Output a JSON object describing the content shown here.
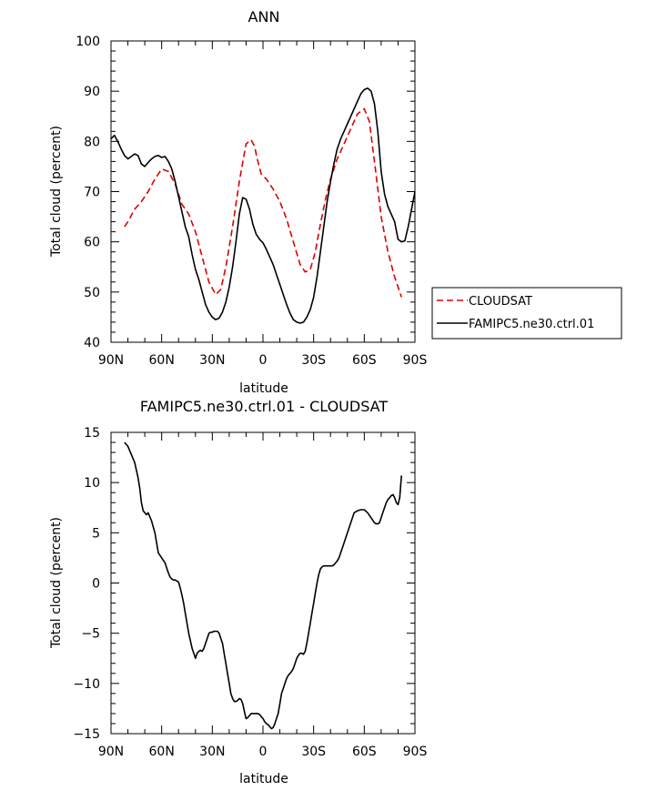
{
  "chart_data": [
    {
      "type": "line",
      "title": "ANN",
      "xlabel": "latitude",
      "ylabel": "Total cloud (percent)",
      "xlim": [
        90,
        -90
      ],
      "ylim": [
        40,
        100
      ],
      "xticks": [
        {
          "value": 90,
          "label": "90N"
        },
        {
          "value": 60,
          "label": "60N"
        },
        {
          "value": 30,
          "label": "30N"
        },
        {
          "value": 0,
          "label": "0"
        },
        {
          "value": -30,
          "label": "30S"
        },
        {
          "value": -60,
          "label": "60S"
        },
        {
          "value": -90,
          "label": "90S"
        }
      ],
      "yticks": [
        40,
        50,
        60,
        70,
        80,
        90,
        100
      ],
      "legend_position": "right",
      "series": [
        {
          "name": "CLOUDSAT",
          "color": "#dd0000",
          "dash": "dashed",
          "x": [
            82,
            80,
            76,
            72,
            68,
            64,
            60,
            56,
            52,
            48,
            44,
            40,
            36,
            32,
            28,
            25,
            22,
            18,
            14,
            10,
            7,
            5,
            3,
            1,
            -2,
            -6,
            -10,
            -14,
            -18,
            -22,
            -25,
            -28,
            -31,
            -34,
            -37,
            -40,
            -44,
            -48,
            -52,
            -56,
            -60,
            -63,
            -66,
            -70,
            -74,
            -78,
            -82
          ],
          "y": [
            63,
            64,
            66.5,
            68,
            70,
            72.5,
            74.5,
            74,
            71.5,
            67.5,
            65.5,
            62,
            57,
            52,
            49.5,
            50.5,
            55,
            63,
            72,
            79.5,
            80.3,
            79,
            76,
            73.5,
            72.5,
            70.5,
            68,
            64.5,
            60,
            55.5,
            54,
            54.5,
            58,
            63.5,
            68.5,
            72.5,
            76.5,
            79.5,
            82.5,
            85.5,
            86.5,
            84,
            76,
            65,
            58,
            53,
            49
          ]
        },
        {
          "name": "FAMIPC5.ne30.ctrl.01",
          "color": "#000000",
          "dash": "solid",
          "x": [
            90,
            88,
            86,
            84,
            82,
            80,
            78,
            76,
            74,
            72,
            70,
            68,
            66,
            64,
            62,
            60,
            58,
            56,
            54,
            52,
            50,
            48,
            46,
            44,
            42,
            40,
            38,
            36,
            34,
            32,
            30,
            28,
            26,
            24,
            22,
            20,
            18,
            16,
            14,
            12,
            10,
            8,
            7,
            6,
            5,
            4,
            3,
            2,
            0,
            -2,
            -4,
            -6,
            -8,
            -10,
            -12,
            -14,
            -16,
            -18,
            -20,
            -22,
            -24,
            -26,
            -28,
            -30,
            -32,
            -34,
            -36,
            -38,
            -40,
            -42,
            -44,
            -46,
            -48,
            -50,
            -52,
            -54,
            -56,
            -58,
            -60,
            -62,
            -64,
            -66,
            -68,
            -70,
            -72,
            -74,
            -76,
            -78,
            -80,
            -82,
            -84,
            -86,
            -88,
            -90
          ],
          "y": [
            80.5,
            81.2,
            80,
            78.5,
            77.2,
            76.5,
            77,
            77.5,
            77.2,
            75.5,
            75,
            75.8,
            76.5,
            77,
            77.2,
            76.8,
            77,
            76,
            74.5,
            72,
            69,
            66,
            63,
            61,
            57.5,
            54.5,
            52.5,
            50,
            47.5,
            46,
            45,
            44.5,
            44.8,
            46,
            48,
            51,
            55,
            60,
            65.5,
            68.8,
            68.5,
            66.5,
            65,
            63.5,
            62.5,
            61.5,
            61,
            60.5,
            59.8,
            58.5,
            57,
            55.5,
            53.5,
            51.5,
            49.5,
            47.5,
            45.8,
            44.5,
            44,
            43.8,
            44,
            45,
            46.5,
            49,
            53,
            58,
            63,
            68,
            72,
            75.5,
            78.5,
            80.5,
            82,
            83.5,
            85,
            86.5,
            88,
            89.5,
            90.3,
            90.6,
            90,
            87.5,
            82,
            74,
            69.5,
            67,
            65.5,
            64,
            60.5,
            60,
            60.2,
            63,
            66.5,
            70
          ]
        }
      ]
    },
    {
      "type": "line",
      "title": "FAMIPC5.ne30.ctrl.01 - CLOUDSAT",
      "xlabel": "latitude",
      "ylabel": "Total cloud (percent)",
      "xlim": [
        90,
        -90
      ],
      "ylim": [
        -15,
        15
      ],
      "xticks": [
        {
          "value": 90,
          "label": "90N"
        },
        {
          "value": 60,
          "label": "60N"
        },
        {
          "value": 30,
          "label": "30N"
        },
        {
          "value": 0,
          "label": "0"
        },
        {
          "value": -30,
          "label": "30S"
        },
        {
          "value": -60,
          "label": "60S"
        },
        {
          "value": -90,
          "label": "90S"
        }
      ],
      "yticks": [
        -15,
        -10,
        -5,
        0,
        5,
        10,
        15
      ],
      "series": [
        {
          "color": "#000000",
          "dash": "solid",
          "x": [
            82,
            80,
            78,
            76,
            74,
            73,
            72,
            71,
            70,
            69,
            68,
            66,
            64,
            62,
            60,
            58,
            57,
            56,
            55,
            54,
            53,
            52,
            51,
            50,
            49,
            48,
            47,
            46,
            45,
            44,
            42,
            40,
            39,
            38,
            37,
            36,
            35,
            34,
            33,
            32,
            31,
            30,
            29,
            28,
            27,
            26,
            25,
            24,
            23,
            22,
            21,
            20,
            19,
            18,
            17,
            16,
            15,
            14,
            13,
            12,
            11,
            10,
            9,
            8,
            7,
            6,
            5,
            4,
            3,
            2,
            1,
            0,
            -1,
            -2,
            -3,
            -4,
            -5,
            -6,
            -7,
            -8,
            -9,
            -10,
            -11,
            -12,
            -13,
            -14,
            -15,
            -16,
            -17,
            -18,
            -19,
            -20,
            -21,
            -22,
            -23,
            -24,
            -25,
            -26,
            -27,
            -28,
            -29,
            -30,
            -31,
            -32,
            -33,
            -34,
            -35,
            -36,
            -37,
            -38,
            -39,
            -40,
            -41,
            -42,
            -43,
            -44,
            -45,
            -46,
            -48,
            -50,
            -52,
            -54,
            -56,
            -58,
            -60,
            -62,
            -64,
            -66,
            -67,
            -68,
            -69,
            -70,
            -71,
            -72,
            -73,
            -74,
            -75,
            -76,
            -77,
            -78,
            -79,
            -80,
            -81,
            -82
          ],
          "y": [
            14,
            13.6,
            12.8,
            12,
            10.5,
            9.5,
            8,
            7.2,
            7,
            6.8,
            7,
            6.2,
            5,
            3,
            2.5,
            2,
            1.5,
            1,
            0.6,
            0.4,
            0.3,
            0.3,
            0.2,
            0.1,
            -0.5,
            -1.2,
            -2,
            -3,
            -4,
            -5,
            -6.5,
            -7.5,
            -7,
            -6.8,
            -6.7,
            -6.8,
            -6.5,
            -6,
            -5.5,
            -5,
            -4.9,
            -4.9,
            -4.8,
            -4.8,
            -4.8,
            -5,
            -5.5,
            -6,
            -7,
            -8,
            -9,
            -10,
            -11,
            -11.5,
            -11.8,
            -11.8,
            -11.7,
            -11.5,
            -11.6,
            -12,
            -12.8,
            -13.5,
            -13.4,
            -13.2,
            -13,
            -13,
            -13,
            -13,
            -13,
            -13.1,
            -13.3,
            -13.5,
            -13.8,
            -14,
            -14.1,
            -14.3,
            -14.5,
            -14.4,
            -14,
            -13.5,
            -13,
            -12,
            -11,
            -10.5,
            -10,
            -9.5,
            -9.2,
            -9,
            -8.8,
            -8.5,
            -8,
            -7.5,
            -7.2,
            -7,
            -7,
            -7.1,
            -6.8,
            -6,
            -5,
            -4,
            -3,
            -2,
            -1,
            0,
            0.8,
            1.4,
            1.6,
            1.7,
            1.7,
            1.7,
            1.7,
            1.7,
            1.7,
            1.8,
            2,
            2.2,
            2.5,
            3,
            4,
            5,
            6,
            7,
            7.2,
            7.3,
            7.3,
            7,
            6.5,
            6,
            5.9,
            5.9,
            6,
            6.5,
            7,
            7.5,
            8,
            8.3,
            8.5,
            8.7,
            8.8,
            8.5,
            8,
            7.8,
            8.5,
            10.7
          ]
        }
      ]
    }
  ]
}
